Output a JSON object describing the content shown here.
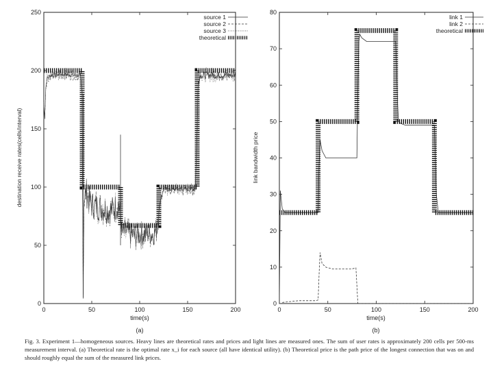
{
  "chart_data": [
    {
      "type": "line",
      "panel_label": "(a)",
      "xlabel": "time(s)",
      "ylabel": "destination receive rates(cells/interval)",
      "xlim": [
        0,
        200
      ],
      "ylim": [
        0,
        250
      ],
      "xticks": [
        0,
        50,
        100,
        150,
        200
      ],
      "yticks": [
        0,
        50,
        100,
        150,
        200,
        250
      ],
      "legend_position": "top-right",
      "series": [
        {
          "name": "source 1",
          "style": "solid-light"
        },
        {
          "name": "source 2",
          "style": "dashed-light"
        },
        {
          "name": "source 3",
          "style": "dotted-light"
        },
        {
          "name": "theoretical",
          "style": "heavy",
          "x": [
            0,
            40,
            40,
            80,
            80,
            120,
            120,
            160,
            160,
            200
          ],
          "y": [
            200,
            200,
            100,
            100,
            67,
            67,
            100,
            100,
            200,
            200
          ]
        }
      ],
      "measured_trace": {
        "x": [
          0,
          1,
          2,
          3,
          5,
          8,
          12,
          20,
          30,
          38,
          40,
          41,
          42,
          44,
          50,
          60,
          70,
          78,
          80,
          82,
          85,
          95,
          105,
          115,
          118,
          120,
          122,
          125,
          135,
          145,
          155,
          158,
          160,
          161,
          163,
          170,
          180,
          190,
          200
        ],
        "y": [
          170,
          160,
          185,
          192,
          195,
          196,
          196,
          197,
          196,
          196,
          180,
          5,
          88,
          95,
          85,
          82,
          80,
          85,
          75,
          60,
          62,
          58,
          60,
          60,
          65,
          80,
          90,
          98,
          98,
          98,
          98,
          99,
          150,
          190,
          196,
          196,
          196,
          196,
          196
        ]
      }
    },
    {
      "type": "line",
      "panel_label": "(b)",
      "xlabel": "time(s)",
      "ylabel": "link bandwidth price",
      "xlim": [
        0,
        200
      ],
      "ylim": [
        0,
        80
      ],
      "xticks": [
        0,
        50,
        100,
        150,
        200
      ],
      "yticks": [
        0,
        10,
        20,
        30,
        40,
        50,
        60,
        70,
        80
      ],
      "legend_position": "top-right",
      "series": [
        {
          "name": "link 1",
          "style": "solid-light",
          "x": [
            0,
            1,
            3,
            6,
            10,
            20,
            30,
            38,
            40,
            41,
            42,
            44,
            48,
            55,
            65,
            75,
            80,
            81,
            82,
            83,
            85,
            90,
            100,
            110,
            120,
            121,
            122,
            123,
            125,
            130,
            140,
            150,
            160,
            161,
            162,
            164,
            170,
            180,
            190,
            200
          ],
          "y": [
            0,
            31,
            26,
            25,
            25,
            25,
            25,
            25,
            25,
            38,
            45,
            42,
            40,
            40,
            40,
            40,
            40,
            58,
            72,
            74,
            73,
            72,
            72,
            72,
            72,
            65,
            55,
            50,
            49.5,
            49,
            49,
            49,
            49,
            40,
            30,
            25,
            25,
            25,
            25,
            25
          ]
        },
        {
          "name": "link 2",
          "style": "dashed-light",
          "x": [
            0,
            2,
            3,
            10,
            20,
            30,
            38,
            40,
            41,
            42,
            44,
            48,
            55,
            65,
            75,
            79,
            80,
            81,
            82,
            200
          ],
          "y": [
            0,
            0,
            0.3,
            0.5,
            0.8,
            0.8,
            0.8,
            1,
            8,
            14,
            11,
            10,
            9.5,
            9.5,
            9.5,
            9.8,
            5,
            0,
            0,
            0
          ]
        },
        {
          "name": "theoretical",
          "style": "heavy",
          "x": [
            0,
            40,
            40,
            80,
            80,
            120,
            120,
            160,
            160,
            200
          ],
          "y": [
            25,
            25,
            50,
            50,
            75,
            75,
            50,
            50,
            25,
            25
          ]
        }
      ]
    }
  ],
  "caption": {
    "text": "Fig. 3.   Experiment 1—homogeneous sources. Heavy lines are theoretical rates and prices and light lines are measured ones. The sum of user rates is approximately 200 cells per 500-ms measurement interval. (a) Theoretical rate is the optimal rate x_i for each source (all have identical utility). (b) Theoretical price is the path price of the longest connection that was on and should roughly equal the sum of the measured link prices."
  }
}
